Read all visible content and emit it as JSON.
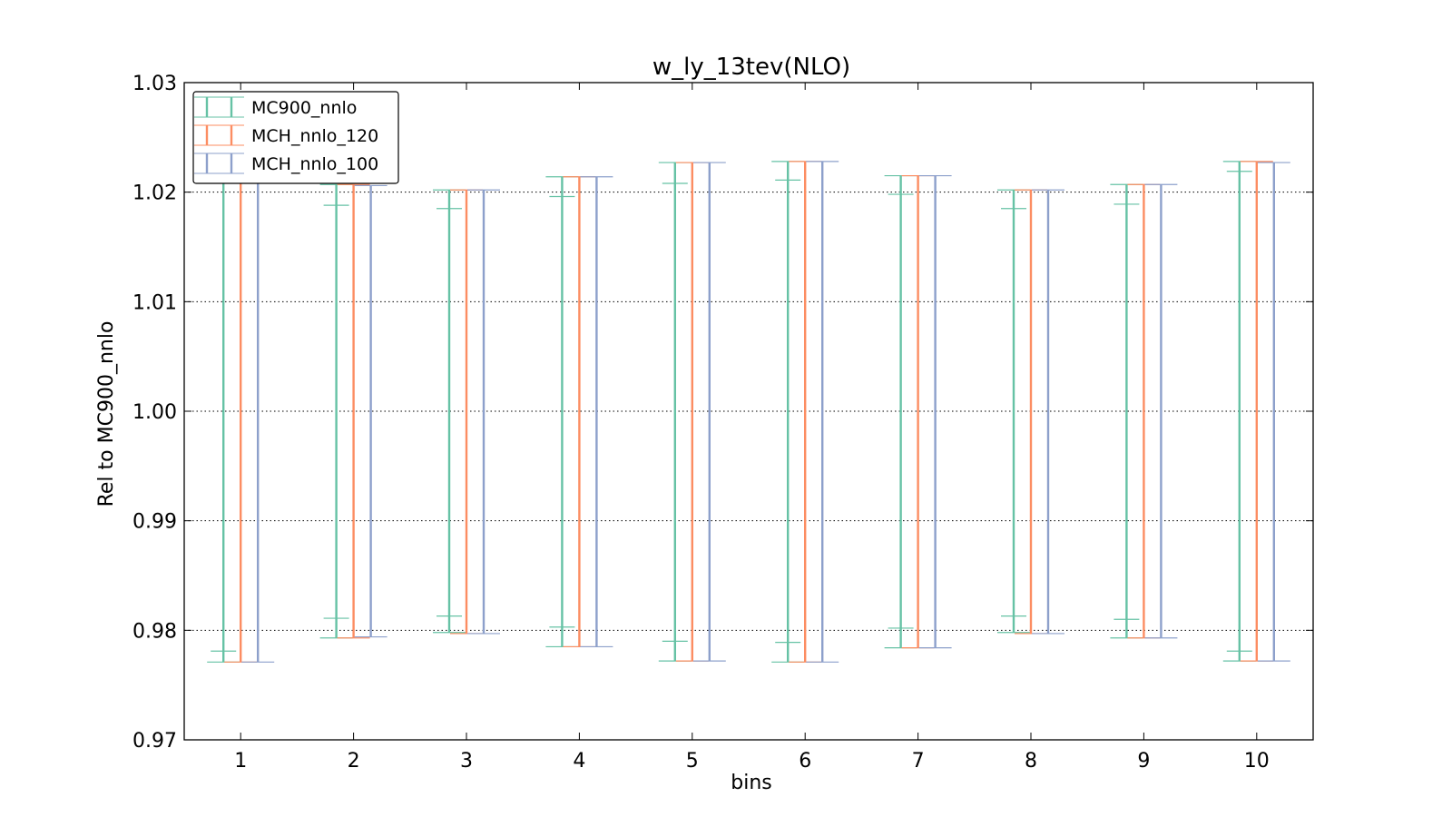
{
  "chart_data": {
    "type": "errorbar",
    "title": "w_ly_13tev(NLO)",
    "xlabel": "bins",
    "ylabel": "Rel to MC900_nnlo",
    "xlim": [
      0.5,
      10.5
    ],
    "ylim": [
      0.97,
      1.03
    ],
    "xticks": [
      "1",
      "2",
      "3",
      "4",
      "5",
      "6",
      "7",
      "8",
      "9",
      "10"
    ],
    "yticks": [
      "0.97",
      "0.98",
      "0.99",
      "1.00",
      "1.01",
      "1.02",
      "1.03"
    ],
    "grid": "horizontal dotted",
    "legend_position": "top-left",
    "bins": [
      1,
      2,
      3,
      4,
      5,
      6,
      7,
      8,
      9,
      10
    ],
    "series": [
      {
        "name": "MC900_nnlo",
        "color": "#66c2a5",
        "lower": [
          0.9771,
          0.9793,
          0.9798,
          0.9785,
          0.9772,
          0.9771,
          0.9784,
          0.9798,
          0.9793,
          0.9772
        ],
        "upper": [
          1.0229,
          1.0207,
          1.0202,
          1.0214,
          1.0227,
          1.0228,
          1.0215,
          1.0202,
          1.0207,
          1.0228
        ],
        "inner_lower": [
          0.9781,
          0.9811,
          0.9813,
          0.9803,
          0.979,
          0.9789,
          0.9802,
          0.9813,
          0.981,
          0.9781
        ],
        "inner_upper": [
          1.0219,
          1.0188,
          1.0185,
          1.0196,
          1.0208,
          1.0211,
          1.0198,
          1.0185,
          1.0189,
          1.0219
        ]
      },
      {
        "name": "MCH_nnlo_120",
        "color": "#fc8d62",
        "lower": [
          0.9771,
          0.9793,
          0.9797,
          0.9785,
          0.9772,
          0.9771,
          0.9784,
          0.9797,
          0.9793,
          0.9772
        ],
        "upper": [
          1.0228,
          1.0207,
          1.0202,
          1.0214,
          1.0227,
          1.0228,
          1.0215,
          1.0202,
          1.0207,
          1.0228
        ]
      },
      {
        "name": "MCH_nnlo_100",
        "color": "#8da0cb",
        "lower": [
          0.9771,
          0.9794,
          0.9797,
          0.9785,
          0.9772,
          0.9771,
          0.9784,
          0.9797,
          0.9793,
          0.9772
        ],
        "upper": [
          1.0229,
          1.0206,
          1.0202,
          1.0214,
          1.0227,
          1.0228,
          1.0215,
          1.0202,
          1.0207,
          1.0227
        ]
      }
    ]
  }
}
